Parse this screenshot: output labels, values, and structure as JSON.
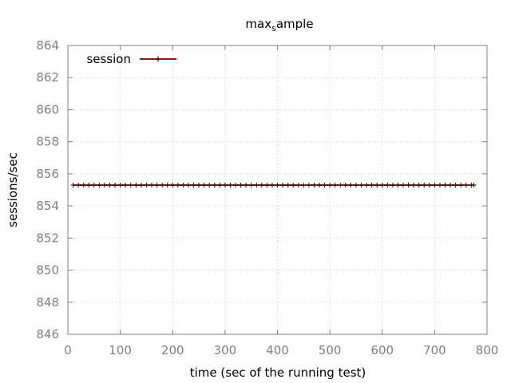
{
  "chart_data": {
    "type": "line",
    "title": {
      "main": "max",
      "sub": "s",
      "rest": "ample"
    },
    "xlabel": "time (sec of the running test)",
    "ylabel": "sessions/sec",
    "xlim": [
      0,
      800
    ],
    "ylim": [
      846,
      864
    ],
    "xticks": [
      0,
      100,
      200,
      300,
      400,
      500,
      600,
      700,
      800
    ],
    "yticks": [
      846,
      848,
      850,
      852,
      854,
      856,
      858,
      860,
      862,
      864
    ],
    "grid": true,
    "legend_position": "top-left",
    "series": [
      {
        "name": "session",
        "color": "#8b1a1a",
        "marker": "plus",
        "x": [
          10,
          20,
          30,
          40,
          50,
          60,
          70,
          80,
          90,
          100,
          110,
          120,
          130,
          140,
          150,
          160,
          170,
          180,
          190,
          200,
          210,
          220,
          230,
          240,
          250,
          260,
          270,
          280,
          290,
          300,
          310,
          320,
          330,
          340,
          350,
          360,
          370,
          380,
          390,
          400,
          410,
          420,
          430,
          440,
          450,
          460,
          470,
          480,
          490,
          500,
          510,
          520,
          530,
          540,
          550,
          560,
          570,
          580,
          590,
          600,
          610,
          620,
          630,
          640,
          650,
          660,
          670,
          680,
          690,
          700,
          710,
          720,
          730,
          740,
          750,
          760,
          770,
          775
        ],
        "y_constant": 855.3
      }
    ]
  }
}
